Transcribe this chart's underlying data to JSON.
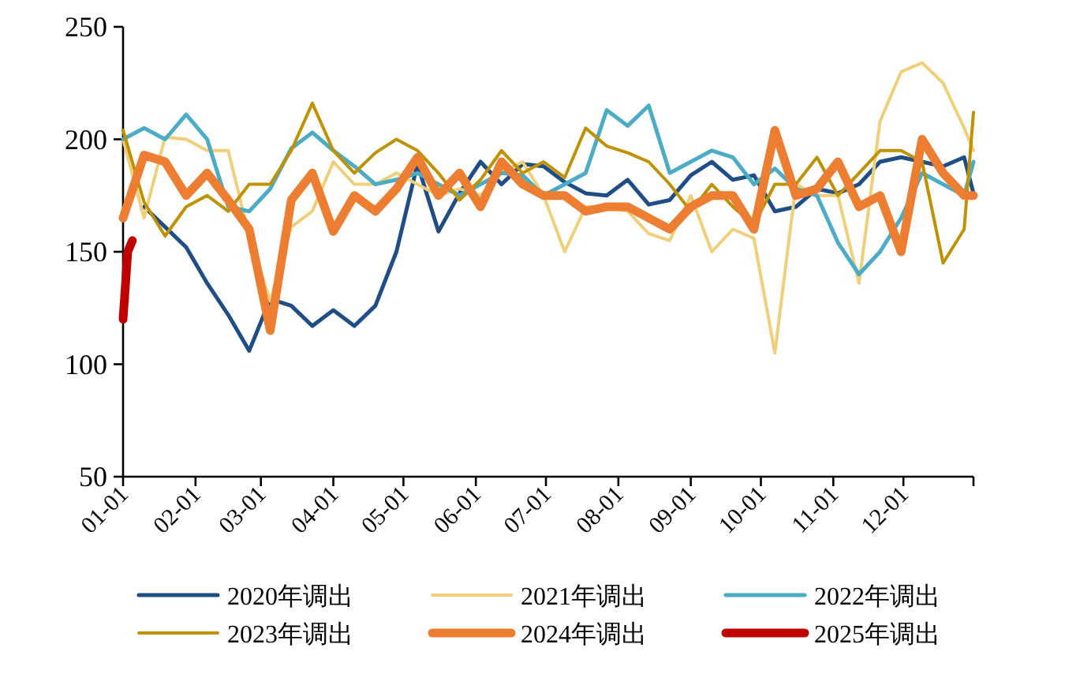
{
  "chart_data": {
    "type": "line",
    "legend": "bottom",
    "grid": false,
    "x": [
      "--01-01",
      "--01-10",
      "--01-19",
      "--01-28",
      "--02-06",
      "--02-15",
      "--02-24",
      "--03-05",
      "--03-14",
      "--03-23",
      "--04-01",
      "--04-10",
      "--04-19",
      "--04-28",
      "--05-07",
      "--05-16",
      "--05-25",
      "--06-03",
      "--06-12",
      "--06-21",
      "--06-30",
      "--07-09",
      "--07-18",
      "--07-27",
      "--08-05",
      "--08-14",
      "--08-23",
      "--09-01",
      "--09-10",
      "--09-19",
      "--09-28",
      "--10-07",
      "--10-16",
      "--10-25",
      "--11-03",
      "--11-12",
      "--11-21",
      "--11-30",
      "--12-09",
      "--12-18",
      "--12-27",
      "--12-31"
    ],
    "xlim": [
      "--01-01",
      "--12-31"
    ],
    "xticks": [
      {
        "value": "--01-01",
        "label": "01-01"
      },
      {
        "value": "--02-01",
        "label": "02-01"
      },
      {
        "value": "--03-01",
        "label": "03-01"
      },
      {
        "value": "--04-01",
        "label": "04-01"
      },
      {
        "value": "--05-01",
        "label": "05-01"
      },
      {
        "value": "--06-01",
        "label": "06-01"
      },
      {
        "value": "--07-01",
        "label": "07-01"
      },
      {
        "value": "--08-01",
        "label": "08-01"
      },
      {
        "value": "--09-01",
        "label": "09-01"
      },
      {
        "value": "--10-01",
        "label": "10-01"
      },
      {
        "value": "--11-01",
        "label": "11-01"
      },
      {
        "value": "--12-01",
        "label": "12-01"
      },
      {
        "value": "--12-31",
        "label": null
      }
    ],
    "ylim": [
      50,
      250
    ],
    "yticks": [
      50,
      100,
      150,
      200,
      250
    ],
    "series": [
      {
        "name": "2020年调出",
        "color": "#1f4e87",
        "values": [
          null,
          170,
          161,
          152,
          136,
          122,
          106,
          129,
          126,
          117,
          124,
          117,
          126,
          150,
          189,
          159,
          176,
          190,
          180,
          189,
          188,
          181,
          176,
          175,
          182,
          171,
          173,
          184,
          190,
          182,
          184,
          168,
          170,
          178,
          176,
          180,
          190,
          192,
          190,
          188,
          192,
          176
        ]
      },
      {
        "name": "2021年调出",
        "color": "#f0cf78",
        "values": [
          200,
          165,
          201,
          200,
          195,
          195,
          157,
          128,
          161,
          168,
          190,
          180,
          180,
          185,
          180,
          175,
          178,
          175,
          185,
          190,
          175,
          150,
          170,
          170,
          168,
          158,
          155,
          175,
          150,
          160,
          156,
          105,
          180,
          175,
          175,
          136,
          208,
          230,
          234,
          225,
          205,
          195
        ]
      },
      {
        "name": "2022年调出",
        "color": "#4bacc6",
        "values": [
          200,
          205,
          200,
          211,
          200,
          170,
          168,
          178,
          196,
          203,
          195,
          188,
          180,
          182,
          185,
          180,
          175,
          180,
          185,
          184,
          175,
          180,
          185,
          213,
          206,
          215,
          185,
          190,
          195,
          192,
          180,
          187,
          178,
          175,
          154,
          140,
          150,
          165,
          185,
          180,
          175,
          190
        ]
      },
      {
        "name": "2023年调出",
        "color": "#c09100",
        "values": [
          204,
          172,
          157,
          170,
          175,
          168,
          180,
          180,
          195,
          216,
          195,
          185,
          194,
          200,
          195,
          185,
          173,
          182,
          195,
          185,
          190,
          183,
          205,
          197,
          194,
          190,
          180,
          168,
          180,
          170,
          162,
          180,
          180,
          192,
          175,
          185,
          195,
          195,
          190,
          145,
          160,
          212
        ]
      },
      {
        "name": "2024年调出",
        "color": "#ed7d31",
        "values": [
          165,
          193,
          190,
          175,
          185,
          173,
          160,
          115,
          173,
          185,
          159,
          175,
          168,
          178,
          192,
          175,
          185,
          170,
          190,
          180,
          175,
          175,
          168,
          170,
          170,
          165,
          160,
          170,
          175,
          175,
          160,
          204,
          175,
          178,
          190,
          170,
          175,
          150,
          200,
          185,
          175,
          175
        ]
      },
      {
        "name": "2025年调出",
        "color": "#c00000",
        "x": [
          "--01-01",
          "--01-03",
          "--01-05"
        ],
        "values": [
          120,
          150,
          155
        ]
      }
    ]
  }
}
